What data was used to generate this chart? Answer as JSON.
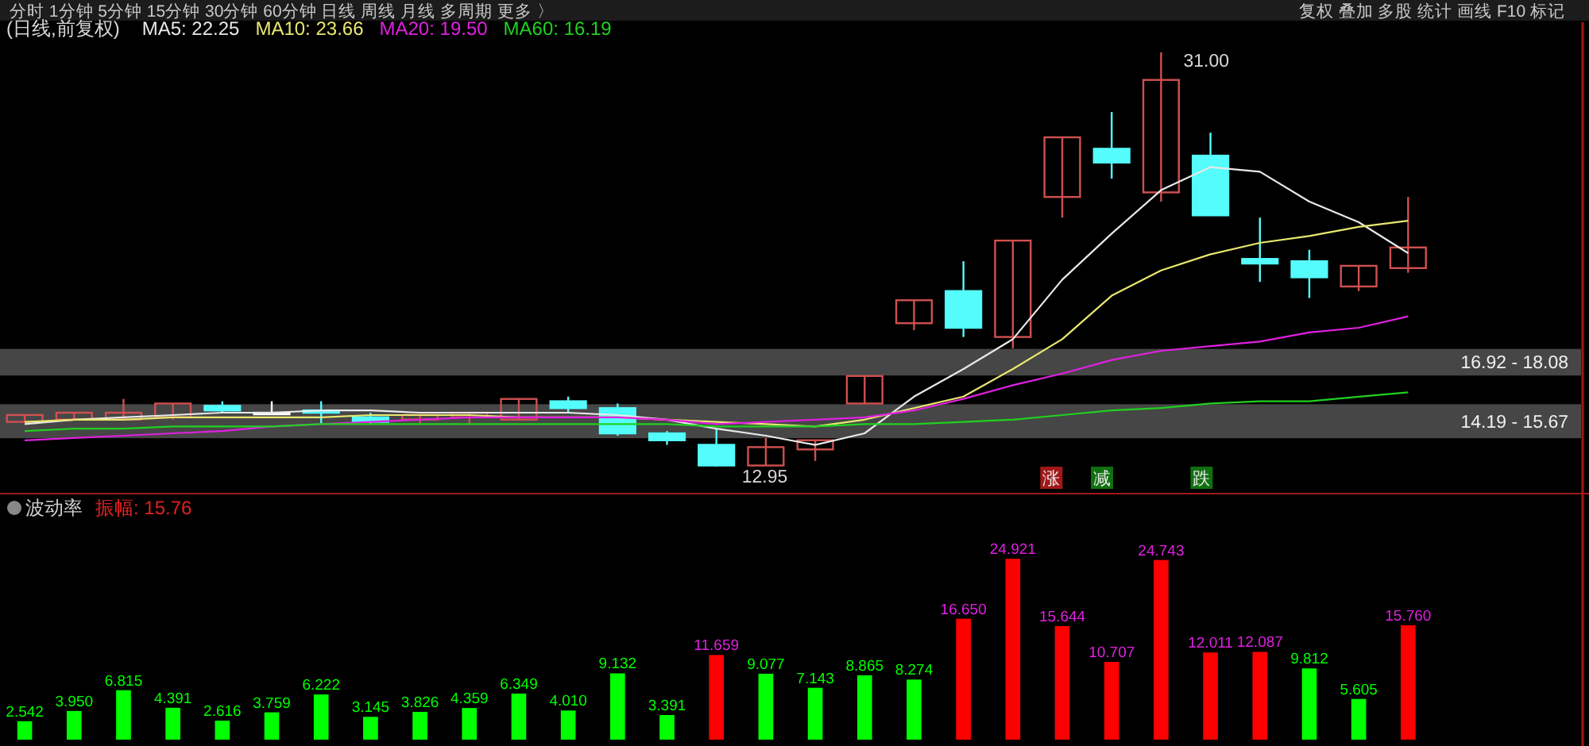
{
  "chart_data": [
    {
      "type": "candlestick",
      "title": "(日线,前复权)",
      "legend": "top",
      "tick_labels": false,
      "grid": false,
      "annotations": [
        "分时  1分钟  5分钟  15分钟  30分钟  60分钟  日线  周线  月线  多周期  更多 〉",
        "复权  叠加  多股  统计  画线  F10  标记",
        "涨",
        "减",
        "跌",
        "31.00",
        "12.95"
      ],
      "categories": [
        null,
        null,
        null,
        null,
        null,
        null,
        null,
        null,
        null,
        null,
        null,
        null,
        null,
        null,
        null,
        null,
        null,
        null,
        null,
        null,
        null,
        null,
        null,
        null,
        null,
        null,
        null,
        null,
        null
      ],
      "ohlc": [
        [
          14.9,
          15.2,
          14.9,
          15.2
        ],
        [
          15.0,
          15.3,
          15.0,
          15.3
        ],
        [
          15.0,
          15.9,
          15.0,
          15.3
        ],
        [
          15.1,
          15.7,
          15.0,
          15.7
        ],
        [
          15.6,
          15.8,
          15.3,
          15.4
        ],
        [
          15.3,
          15.8,
          15.2,
          15.3
        ],
        [
          15.4,
          15.8,
          14.8,
          15.3
        ],
        [
          15.1,
          15.3,
          14.8,
          14.9
        ],
        [
          15.0,
          15.2,
          14.8,
          15.2
        ],
        [
          15.1,
          15.3,
          14.8,
          15.3
        ],
        [
          15.0,
          15.9,
          15.0,
          15.9
        ],
        [
          15.8,
          16.0,
          15.3,
          15.5
        ],
        [
          15.5,
          15.7,
          14.3,
          14.4
        ],
        [
          14.4,
          14.5,
          13.9,
          14.1
        ],
        [
          13.9,
          14.6,
          12.95,
          13.0
        ],
        [
          13.0,
          14.2,
          13.0,
          13.8
        ],
        [
          13.7,
          14.1,
          13.2,
          14.1
        ],
        [
          15.7,
          16.9,
          15.7,
          16.9
        ],
        [
          19.2,
          20.2,
          18.9,
          20.2
        ],
        [
          20.6,
          21.9,
          18.6,
          19.0
        ],
        [
          18.6,
          22.8,
          18.1,
          22.8
        ],
        [
          24.7,
          27.3,
          23.8,
          27.3
        ],
        [
          26.8,
          28.4,
          25.5,
          26.2
        ],
        [
          24.9,
          31.0,
          24.5,
          29.8
        ],
        [
          26.5,
          27.5,
          23.9,
          23.9
        ],
        [
          22.0,
          23.8,
          21.0,
          21.8
        ],
        [
          21.9,
          22.4,
          20.3,
          21.2
        ],
        [
          20.8,
          21.7,
          20.6,
          21.7
        ],
        [
          21.6,
          24.7,
          21.4,
          22.5
        ]
      ],
      "colors": [
        "#d05050",
        "#d05050",
        "#d05050",
        "#d05050",
        "#54fcfc",
        "#ffffff",
        "#54fcfc",
        "#54fcfc",
        "#d05050",
        "#d05050",
        "#d05050",
        "#54fcfc",
        "#54fcfc",
        "#54fcfc",
        "#54fcfc",
        "#d05050",
        "#d05050",
        "#d05050",
        "#d05050",
        "#54fcfc",
        "#d05050",
        "#d05050",
        "#54fcfc",
        "#d05050",
        "#54fcfc",
        "#54fcfc",
        "#54fcfc",
        "#d05050",
        "#d05050"
      ],
      "bands": [
        {
          "axis": "y",
          "from": 16.92,
          "to": 18.08,
          "label": "16.92 - 18.08",
          "color": "#808080"
        },
        {
          "axis": "y",
          "from": 14.19,
          "to": 15.67,
          "label": "14.19 - 15.67",
          "color": "#808080"
        }
      ],
      "series": [
        {
          "name": "MA5: 22.25",
          "type": "line",
          "color": "#e8e8e8",
          "values": [
            14.8,
            15.0,
            15.1,
            15.2,
            15.3,
            15.3,
            15.4,
            15.4,
            15.3,
            15.3,
            15.3,
            15.3,
            15.2,
            15.0,
            14.6,
            14.3,
            13.9,
            14.4,
            16.0,
            17.2,
            18.5,
            21.1,
            23.1,
            25.0,
            26.0,
            25.8,
            24.5,
            23.6,
            22.25
          ]
        },
        {
          "name": "MA10: 23.66",
          "type": "line",
          "color": "#e8e870",
          "values": [
            14.9,
            15.0,
            15.0,
            15.1,
            15.1,
            15.1,
            15.1,
            15.2,
            15.2,
            15.2,
            15.1,
            15.1,
            15.1,
            15.0,
            14.9,
            14.8,
            14.7,
            15.0,
            15.5,
            16.0,
            17.2,
            18.5,
            20.4,
            21.5,
            22.2,
            22.7,
            23.0,
            23.4,
            23.66
          ]
        },
        {
          "name": "MA20: 19.50",
          "type": "line",
          "color": "#e020e0",
          "values": [
            14.1,
            14.2,
            14.3,
            14.4,
            14.5,
            14.7,
            14.8,
            14.9,
            15.0,
            15.1,
            15.1,
            15.1,
            15.1,
            15.0,
            14.8,
            14.9,
            15.0,
            15.1,
            15.4,
            15.9,
            16.5,
            17.0,
            17.6,
            18.0,
            18.2,
            18.4,
            18.8,
            19.0,
            19.5
          ]
        },
        {
          "name": "MA60: 16.19",
          "type": "line",
          "color": "#20d020",
          "values": [
            14.5,
            14.6,
            14.6,
            14.7,
            14.7,
            14.7,
            14.8,
            14.8,
            14.8,
            14.8,
            14.8,
            14.8,
            14.8,
            14.8,
            14.7,
            14.7,
            14.7,
            14.8,
            14.8,
            14.9,
            15.0,
            15.2,
            15.4,
            15.5,
            15.7,
            15.8,
            15.8,
            16.0,
            16.19
          ]
        }
      ]
    },
    {
      "type": "bar",
      "title": "波动率",
      "subtitle": "振幅: 15.76",
      "tick_labels": false,
      "grid": false,
      "categories": [
        null,
        null,
        null,
        null,
        null,
        null,
        null,
        null,
        null,
        null,
        null,
        null,
        null,
        null,
        null,
        null,
        null,
        null,
        null,
        null,
        null,
        null,
        null,
        null,
        null,
        null,
        null,
        null,
        null
      ],
      "values": [
        2.542,
        3.95,
        6.815,
        4.391,
        2.616,
        3.759,
        6.222,
        3.145,
        3.826,
        4.359,
        6.349,
        4.01,
        9.132,
        3.391,
        11.659,
        9.077,
        7.143,
        8.865,
        8.274,
        16.65,
        24.921,
        15.644,
        10.707,
        24.743,
        12.011,
        12.087,
        9.812,
        5.605,
        15.76
      ],
      "value_labels": [
        "2.542",
        "3.950",
        "6.815",
        "4.391",
        "2.616",
        "3.759",
        "6.222",
        "3.145",
        "3.826",
        "4.359",
        "6.349",
        "4.010",
        "9.132",
        "3.391",
        "11.659",
        "9.077",
        "7.143",
        "8.865",
        "8.274",
        "16.650",
        "24.921",
        "15.644",
        "10.707",
        "24.743",
        "12.011",
        "12.087",
        "9.812",
        "5.605",
        "15.760"
      ],
      "colors": [
        "#00ff00",
        "#00ff00",
        "#00ff00",
        "#00ff00",
        "#00ff00",
        "#00ff00",
        "#00ff00",
        "#00ff00",
        "#00ff00",
        "#00ff00",
        "#00ff00",
        "#00ff00",
        "#00ff00",
        "#00ff00",
        "#ff0000",
        "#00ff00",
        "#00ff00",
        "#00ff00",
        "#00ff00",
        "#ff0000",
        "#ff0000",
        "#ff0000",
        "#ff0000",
        "#ff0000",
        "#ff0000",
        "#ff0000",
        "#00ff00",
        "#00ff00",
        "#ff0000"
      ]
    }
  ]
}
